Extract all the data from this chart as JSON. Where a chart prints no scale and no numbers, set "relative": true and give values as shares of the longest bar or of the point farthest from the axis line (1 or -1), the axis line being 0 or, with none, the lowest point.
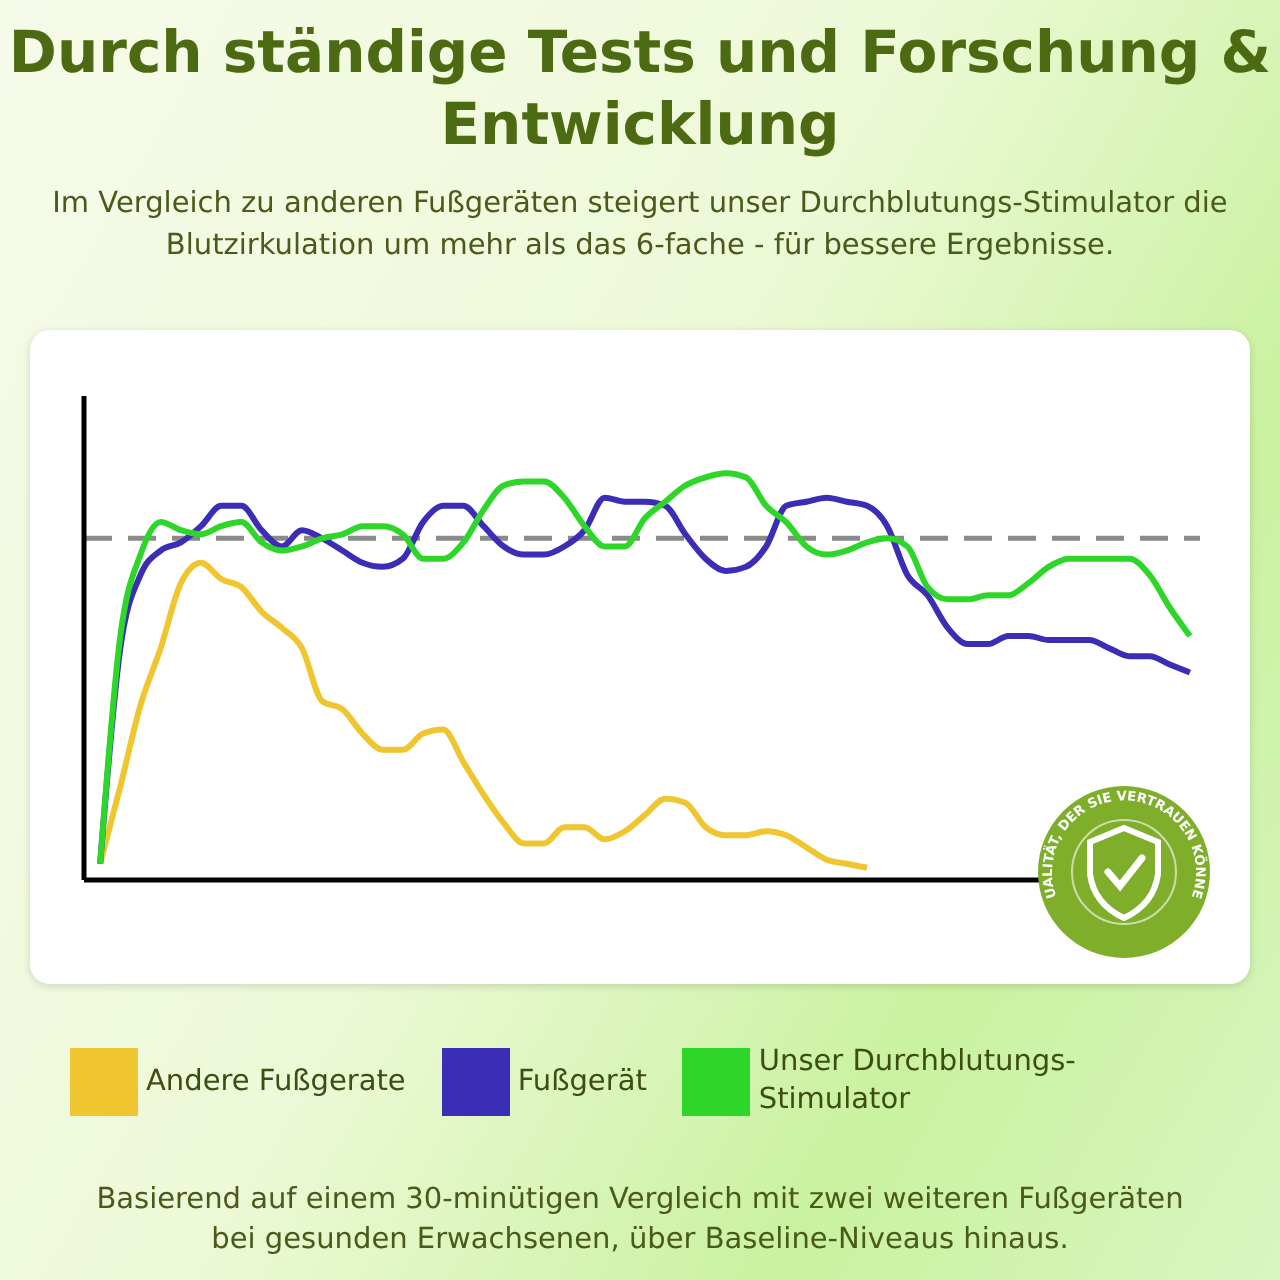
{
  "chart_data": {
    "type": "line",
    "title": "Durch ständige Tests und Forschung & Entwicklung",
    "subtitle": "Im Vergleich zu anderen Fußgeräten steigert unser Durchblutungs-Stimulator die Blutzirkulation um mehr als das 6-fache - für bessere Ergebnisse.",
    "relative": true,
    "legend": "bottom",
    "categories": [
      null,
      null,
      null,
      null,
      null,
      null,
      null,
      null,
      null,
      null,
      null,
      null,
      null,
      null,
      null,
      null,
      null,
      null,
      null,
      null,
      null,
      null,
      null,
      null,
      null,
      null,
      null,
      null,
      null,
      null,
      null,
      null,
      null,
      null,
      null,
      null,
      null,
      null,
      null,
      null,
      null,
      null,
      null,
      null,
      null,
      null,
      null,
      null,
      null,
      null,
      null,
      null,
      null,
      null,
      null
    ],
    "series": [
      {
        "name": "Andere Fußgerate",
        "color": "#f0c630",
        "values": [
          0.04,
          0.23,
          0.43,
          0.57,
          0.73,
          0.78,
          0.74,
          0.72,
          0.66,
          0.62,
          0.57,
          0.44,
          0.42,
          0.36,
          0.32,
          0.32,
          0.36,
          0.37,
          0.29,
          0.21,
          0.14,
          0.09,
          0.09,
          0.13,
          0.13,
          0.1,
          0.12,
          0.16,
          0.2,
          0.19,
          0.13,
          0.11,
          0.11,
          0.12,
          0.11,
          0.08,
          0.05,
          0.04,
          0.03,
          null,
          null,
          null,
          null,
          null,
          null,
          null,
          null,
          null,
          null,
          null,
          null,
          null,
          null,
          null,
          null
        ]
      },
      {
        "name": "Fußgerät",
        "color": "#3b2db5",
        "values": [
          0.04,
          0.57,
          0.75,
          0.81,
          0.83,
          0.87,
          0.92,
          0.92,
          0.86,
          0.82,
          0.86,
          0.84,
          0.81,
          0.78,
          0.77,
          0.79,
          0.88,
          0.92,
          0.92,
          0.87,
          0.82,
          0.8,
          0.8,
          0.82,
          0.86,
          0.94,
          0.93,
          0.93,
          0.92,
          0.85,
          0.79,
          0.76,
          0.77,
          0.82,
          0.92,
          0.93,
          0.94,
          0.93,
          0.92,
          0.87,
          0.75,
          0.7,
          0.62,
          0.58,
          0.58,
          0.6,
          0.6,
          0.59,
          0.59,
          0.59,
          0.57,
          0.55,
          0.55,
          0.53,
          0.51
        ]
      },
      {
        "name": "Unser Durchblutungs-Stimulator",
        "color": "#2fd62a",
        "values": [
          0.04,
          0.6,
          0.8,
          0.88,
          0.86,
          0.85,
          0.87,
          0.88,
          0.83,
          0.81,
          0.82,
          0.84,
          0.85,
          0.87,
          0.87,
          0.85,
          0.79,
          0.79,
          0.83,
          0.91,
          0.97,
          0.98,
          0.98,
          0.94,
          0.87,
          0.82,
          0.82,
          0.89,
          0.93,
          0.97,
          0.99,
          1,
          0.99,
          0.92,
          0.88,
          0.82,
          0.8,
          0.81,
          0.83,
          0.84,
          0.82,
          0.72,
          0.69,
          0.69,
          0.7,
          0.7,
          0.73,
          0.77,
          0.79,
          0.79,
          0.79,
          0.79,
          0.75,
          0.67,
          0.6
        ]
      }
    ],
    "ref_lines": [
      {
        "axis": "y",
        "value": 0.84,
        "color": "#8a8a8a",
        "line_style": "dashed"
      }
    ],
    "annotations": [
      "Basierend auf einem 30-minütigen Vergleich mit zwei weiteren Fußgeräten bei gesunden Erwachsenen, über Baseline-Niveaus hinaus.",
      "QUALITÄT, DER SIE VERTRAUEN KÖNNEN"
    ]
  }
}
